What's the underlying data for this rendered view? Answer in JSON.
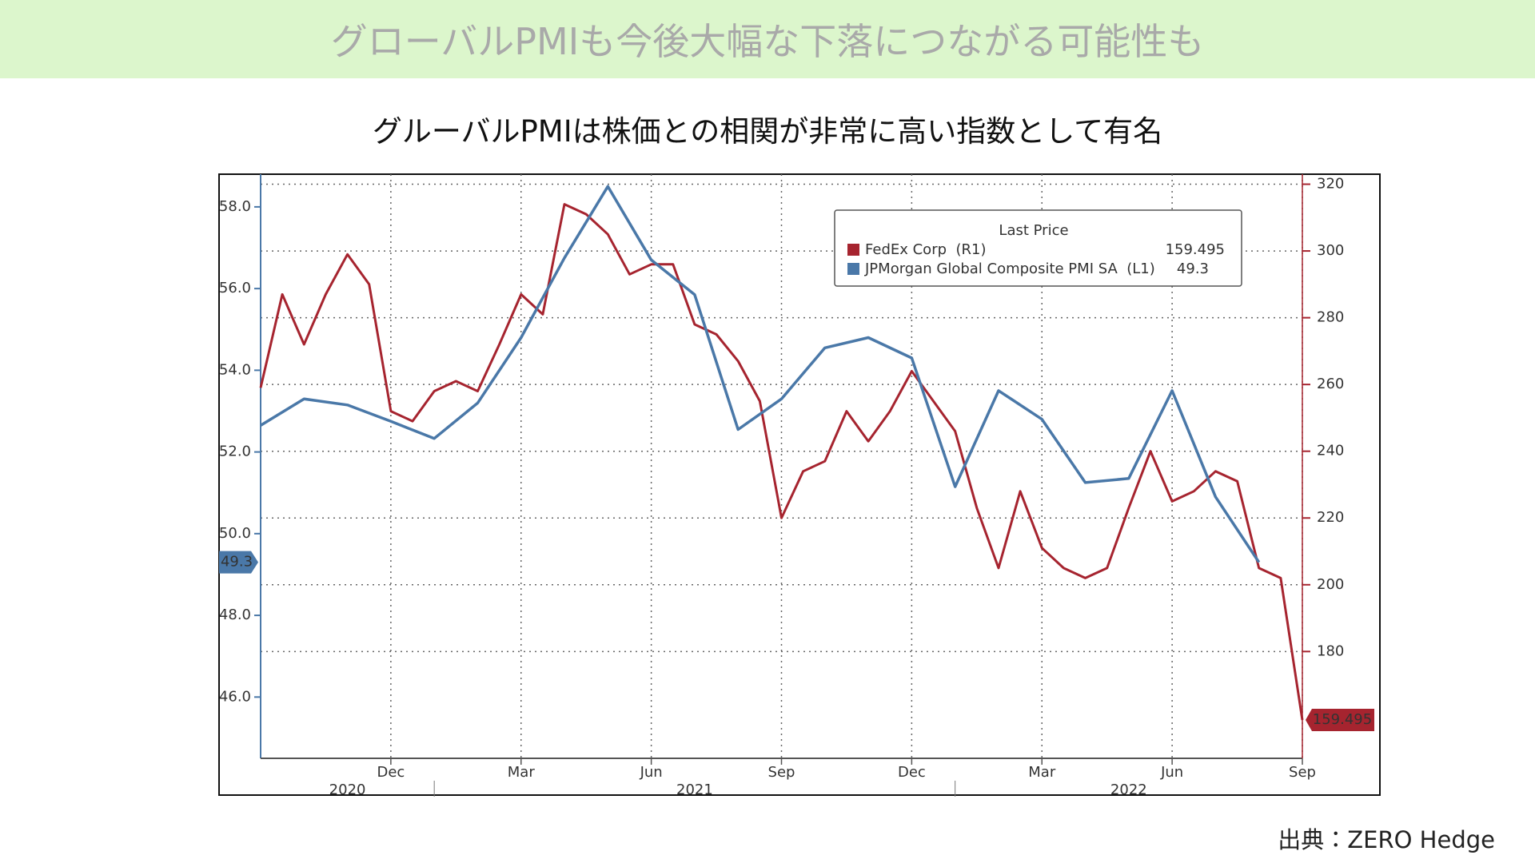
{
  "header": {
    "title": "グローバルPMIも今後大幅な下落につながる可能性も"
  },
  "source": "出典：ZERO Hedge",
  "chart_data": {
    "type": "line",
    "title": "グルーバルPMIは株価との相関が非常に高い指数として有名",
    "legend_title": "Last Price",
    "xlim": [
      "2020-09",
      "2022-09"
    ],
    "xticks": [
      {
        "value": "2020-12",
        "label": "Dec"
      },
      {
        "value": "2021-03",
        "label": "Mar"
      },
      {
        "value": "2021-06",
        "label": "Jun"
      },
      {
        "value": "2021-09",
        "label": "Sep"
      },
      {
        "value": "2021-12",
        "label": "Dec"
      },
      {
        "value": "2022-03",
        "label": "Mar"
      },
      {
        "value": "2022-06",
        "label": "Jun"
      },
      {
        "value": "2022-09",
        "label": "Sep"
      }
    ],
    "years": [
      "2020",
      "2021",
      "2022"
    ],
    "ylim": [
      44.5,
      58.8
    ],
    "yticks": [
      {
        "value": 46,
        "label": "46.0"
      },
      {
        "value": 48,
        "label": "48.0"
      },
      {
        "value": 50,
        "label": "50.0"
      },
      {
        "value": 52,
        "label": "52.0"
      },
      {
        "value": 54,
        "label": "54.0"
      },
      {
        "value": 56,
        "label": "56.0"
      },
      {
        "value": 58,
        "label": "58.0"
      }
    ],
    "y2lim": [
      148,
      323
    ],
    "y2ticks": [
      180,
      200,
      220,
      240,
      260,
      280,
      300,
      320
    ],
    "grid": true,
    "series": [
      {
        "name": "FedEx Corp  (R1)",
        "color": "#a6242f",
        "axis": "y2",
        "last_value_label": "159.495",
        "values": [
          259,
          287,
          272,
          287,
          299,
          290,
          252,
          249,
          258,
          261,
          258,
          272,
          287,
          281,
          314,
          311,
          305,
          293,
          296,
          296,
          278,
          275,
          267,
          255,
          220,
          234,
          237,
          252,
          243,
          252,
          264,
          255,
          246,
          223,
          205,
          228,
          211,
          205,
          202,
          205,
          223,
          240,
          225,
          228,
          234,
          231,
          205,
          202,
          159.495
        ]
      },
      {
        "name": "JPMorgan Global Composite PMI SA  (L1)",
        "color": "#4a78a8",
        "last_value_label": "49.3",
        "x": [
          "2020-09",
          "2020-10",
          "2020-11",
          "2020-12",
          "2021-01",
          "2021-02",
          "2021-03",
          "2021-04",
          "2021-05",
          "2021-06",
          "2021-07",
          "2021-08",
          "2021-09",
          "2021-10",
          "2021-11",
          "2021-12",
          "2022-01",
          "2022-02",
          "2022-03",
          "2022-04",
          "2022-05",
          "2022-06",
          "2022-07",
          "2022-08"
        ],
        "values": [
          52.65,
          53.3,
          53.15,
          52.75,
          52.33,
          53.2,
          54.8,
          56.75,
          58.5,
          56.7,
          55.85,
          52.55,
          53.3,
          54.55,
          54.8,
          54.3,
          51.15,
          53.5,
          52.8,
          51.25,
          51.35,
          53.5,
          50.9,
          49.3
        ]
      }
    ]
  }
}
